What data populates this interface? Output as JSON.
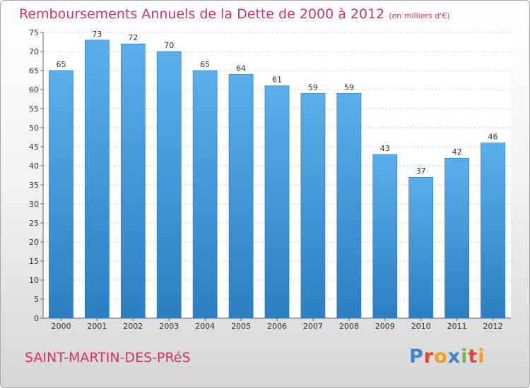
{
  "header": {
    "title": "Remboursements Annuels de la Dette de 2000 à 2012",
    "unit": "(en milliers d'€)"
  },
  "footer": {
    "city": "SAINT-MARTIN-DES-PRéS",
    "logo": "Proxiti"
  },
  "colors": {
    "title": "#d0346a",
    "bar_top": "#5aaeea",
    "bar_bottom": "#2c7fc2",
    "logo_letters": [
      "#3a86c8",
      "#e8443a",
      "#f0a020",
      "#3a86c8",
      "#7ab648",
      "#e8443a",
      "#f0a020"
    ]
  },
  "chart_data": {
    "type": "bar",
    "title": "Remboursements Annuels de la Dette de 2000 à 2012",
    "xlabel": "",
    "ylabel": "",
    "categories": [
      "2000",
      "2001",
      "2002",
      "2003",
      "2004",
      "2005",
      "2006",
      "2007",
      "2008",
      "2009",
      "2010",
      "2011",
      "2012"
    ],
    "values": [
      65,
      73,
      72,
      70,
      65,
      64,
      61,
      59,
      59,
      43,
      37,
      42,
      46
    ],
    "ylim": [
      0,
      75
    ],
    "yticks": [
      0,
      5,
      10,
      15,
      20,
      25,
      30,
      35,
      40,
      45,
      50,
      55,
      60,
      65,
      70,
      75
    ],
    "grid": true
  }
}
